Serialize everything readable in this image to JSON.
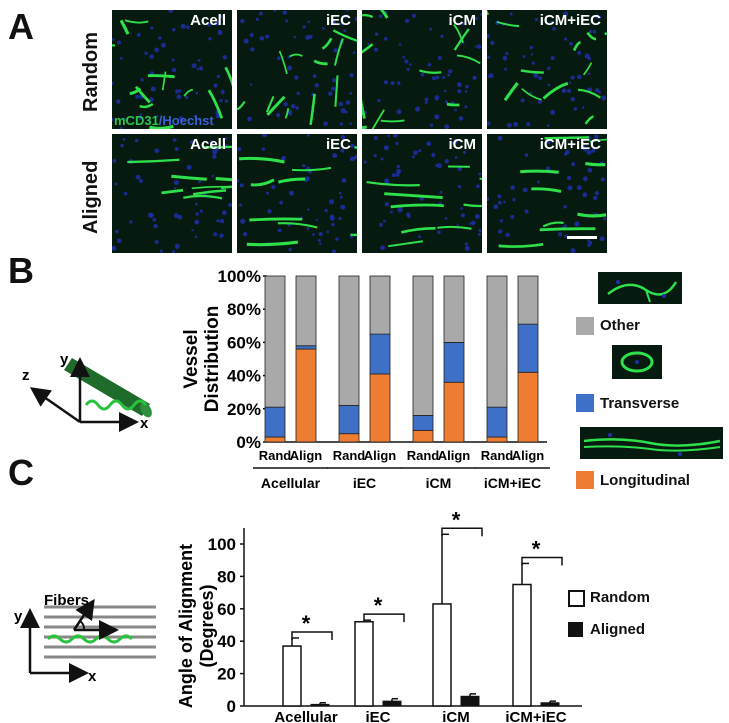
{
  "panels": {
    "a": "A",
    "b": "B",
    "c": "C"
  },
  "panel_a": {
    "rows": [
      "Random",
      "Aligned"
    ],
    "columns": [
      "Acell",
      "iEC",
      "iCM",
      "iCM+iEC"
    ],
    "stain_green": "mCD31",
    "stain_blue": "/Hoechst",
    "colors": {
      "vessel_green": "#2ee04a",
      "nuclei_blue": "#1e2fa8",
      "background": "#061a10"
    }
  },
  "panel_b": {
    "schematic_axes": {
      "x": "x",
      "y": "y",
      "z": "z"
    },
    "legend": [
      {
        "label": "Other",
        "color": "#a9a9a9"
      },
      {
        "label": "Transverse",
        "color": "#3f70c8"
      },
      {
        "label": "Longitudinal",
        "color": "#ee7d31"
      }
    ]
  },
  "panel_c": {
    "schematic_labels": {
      "fibers": "Fibers",
      "x": "x",
      "y": "y"
    },
    "legend": [
      {
        "label": "Random",
        "style": "open"
      },
      {
        "label": "Aligned",
        "style": "filled"
      }
    ]
  },
  "chart_data": [
    {
      "type": "bar",
      "stacked": true,
      "ylabel": "Vessel Distribution",
      "ylim": [
        0,
        100
      ],
      "yticks": [
        "0%",
        "20%",
        "40%",
        "60%",
        "80%",
        "100%"
      ],
      "categories": [
        "Rand",
        "Align",
        "Rand",
        "Align",
        "Rand",
        "Align",
        "Rand",
        "Align"
      ],
      "groups": [
        "Acellular",
        "iEC",
        "iCM",
        "iCM+iEC"
      ],
      "series": [
        {
          "name": "Longitudinal",
          "color": "#ee7d31",
          "values": [
            3,
            56,
            5,
            41,
            7,
            36,
            3,
            42
          ]
        },
        {
          "name": "Transverse",
          "color": "#3f70c8",
          "values": [
            18,
            2,
            17,
            24,
            9,
            24,
            18,
            29
          ]
        },
        {
          "name": "Other",
          "color": "#a9a9a9",
          "values": [
            79,
            42,
            78,
            35,
            84,
            40,
            79,
            29
          ]
        }
      ]
    },
    {
      "type": "bar",
      "ylabel": "Angle of Alignment (Degrees)",
      "ylim": [
        0,
        100
      ],
      "yticks": [
        "0",
        "20",
        "40",
        "60",
        "80",
        "100"
      ],
      "categories": [
        "Acellular",
        "iEC",
        "iCM",
        "iCM+iEC"
      ],
      "series": [
        {
          "name": "Random",
          "values": [
            37,
            52,
            63,
            75
          ],
          "errors": [
            5,
            1,
            43,
            13
          ]
        },
        {
          "name": "Aligned",
          "values": [
            1,
            3,
            6,
            2
          ],
          "errors": [
            1,
            1.5,
            1.5,
            1
          ]
        }
      ],
      "significance": [
        "*",
        "*",
        "*",
        "*"
      ]
    }
  ]
}
